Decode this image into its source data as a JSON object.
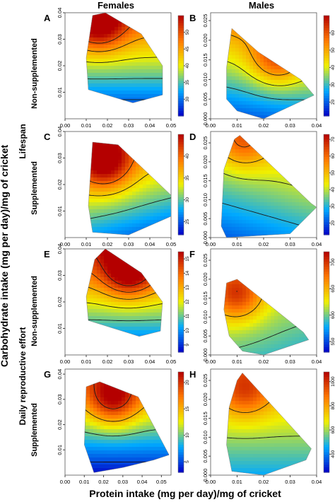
{
  "figure": {
    "column_titles": [
      "Females",
      "Males"
    ],
    "row_groups": [
      "Lifespan",
      "Daily reproductive effort"
    ],
    "row_labels": [
      "Non-supplemented",
      "Supplemented",
      "Non-supplemented",
      "Supplemented"
    ],
    "xlabel": "Protein intake (mg per day)/mg of cricket",
    "ylabel": "Carbohydrate intake (mg per day)/mg of cricket"
  },
  "colors": {
    "low": "#0000c8",
    "mid": "#f0f000",
    "high": "#b40000",
    "contour": "#1a1a1a"
  },
  "chart_data": [
    {
      "panel": "A",
      "type": "heatmap",
      "sex": "Females",
      "diet": "Non-supplemented",
      "response": "Lifespan",
      "xlim": [
        0,
        0.05
      ],
      "ylim": [
        0,
        0.04
      ],
      "xticks": [
        "0.00",
        "0.01",
        "0.02",
        "0.03",
        "0.04",
        "0.05"
      ],
      "yticks": [
        "0.01",
        "0.02",
        "0.03",
        "0.04"
      ],
      "colorbar": {
        "min": 25,
        "max": 55,
        "ticks": [
          "30",
          "35",
          "40",
          "45",
          "50"
        ]
      },
      "region": [
        [
          0.013,
          0.039
        ],
        [
          0.019,
          0.04
        ],
        [
          0.036,
          0.032
        ],
        [
          0.046,
          0.02
        ],
        [
          0.046,
          0.009
        ],
        [
          0.032,
          0.006
        ],
        [
          0.011,
          0.011
        ],
        [
          0.01,
          0.023
        ]
      ],
      "surface": {
        "base": 38,
        "gx": 0.0,
        "gy": 25.0,
        "peak": [
          0.016,
          0.036
        ],
        "peak_height": 12
      }
    },
    {
      "panel": "B",
      "type": "heatmap",
      "sex": "Males",
      "diet": "Non-supplemented",
      "response": "Lifespan",
      "xlim": [
        0,
        0.04
      ],
      "ylim": [
        0,
        0.027
      ],
      "xticks": [
        "0.00",
        "0.01",
        "0.02",
        "0.03",
        "0.04"
      ],
      "yticks": [
        "0.000",
        "0.005",
        "0.010",
        "0.015",
        "0.020",
        "0.025"
      ],
      "colorbar": {
        "min": 12,
        "max": 70,
        "ticks": [
          "20",
          "30",
          "40",
          "50",
          "60"
        ]
      },
      "region": [
        [
          0.008,
          0.023
        ],
        [
          0.018,
          0.017
        ],
        [
          0.034,
          0.01
        ],
        [
          0.039,
          0.006
        ],
        [
          0.02,
          0.0
        ],
        [
          0.01,
          0.002
        ],
        [
          0.006,
          0.005
        ],
        [
          0.006,
          0.013
        ]
      ],
      "surface": {
        "base": 40,
        "gx": 6.0,
        "gy": 40.0,
        "peak": [
          0.025,
          0.015
        ],
        "peak_height": 18
      }
    },
    {
      "panel": "C",
      "type": "heatmap",
      "sex": "Females",
      "diet": "Supplemented",
      "response": "Lifespan",
      "xlim": [
        0,
        0.05
      ],
      "ylim": [
        0,
        0.04
      ],
      "xticks": [
        "0.00",
        "0.01",
        "0.02",
        "0.03",
        "0.04",
        "0.05"
      ],
      "yticks": [
        "0.01",
        "0.02",
        "0.03",
        "0.04"
      ],
      "colorbar": {
        "min": 22,
        "max": 45,
        "ticks": [
          "25",
          "30",
          "35",
          "40"
        ]
      },
      "region": [
        [
          0.013,
          0.036
        ],
        [
          0.025,
          0.035
        ],
        [
          0.05,
          0.016
        ],
        [
          0.05,
          0.008
        ],
        [
          0.03,
          0.001
        ],
        [
          0.013,
          0.002
        ],
        [
          0.011,
          0.012
        ]
      ],
      "surface": {
        "base": 34,
        "gx": -4.0,
        "gy": 16.0,
        "peak": [
          0.019,
          0.028
        ],
        "peak_height": 10
      }
    },
    {
      "panel": "D",
      "type": "heatmap",
      "sex": "Males",
      "diet": "Supplemented",
      "response": "Lifespan",
      "xlim": [
        0,
        0.04
      ],
      "ylim": [
        0,
        0.028
      ],
      "xticks": [
        "0.00",
        "0.01",
        "0.02",
        "0.03",
        "0.04"
      ],
      "yticks": [
        "0.000",
        "0.005",
        "0.010",
        "0.015",
        "0.020",
        "0.025"
      ],
      "colorbar": {
        "min": 13,
        "max": 73,
        "ticks": [
          "20",
          "30",
          "40",
          "50",
          "60",
          "70"
        ]
      },
      "region": [
        [
          0.009,
          0.026
        ],
        [
          0.011,
          0.027
        ],
        [
          0.038,
          0.009
        ],
        [
          0.04,
          0.008
        ],
        [
          0.03,
          0.001
        ],
        [
          0.006,
          0.0
        ],
        [
          0.004,
          0.003
        ],
        [
          0.005,
          0.018
        ]
      ],
      "surface": {
        "base": 38,
        "gx": 8.0,
        "gy": 28.0,
        "peak": [
          0.012,
          0.025
        ],
        "peak_height": 14
      }
    },
    {
      "panel": "E",
      "type": "heatmap",
      "sex": "Females",
      "diet": "Non-supplemented",
      "response": "Daily reproductive effort",
      "xlim": [
        0,
        0.05
      ],
      "ylim": [
        0,
        0.04
      ],
      "xticks": [
        "0.00",
        "0.01",
        "0.02",
        "0.03",
        "0.04",
        "0.05"
      ],
      "yticks": [
        "0.01",
        "0.02",
        "0.03",
        "0.04"
      ],
      "colorbar": {
        "min": 8.5,
        "max": 15.5,
        "ticks": [
          "9",
          "10",
          "11",
          "12",
          "13",
          "14",
          "15"
        ]
      },
      "region": [
        [
          0.014,
          0.036
        ],
        [
          0.019,
          0.04
        ],
        [
          0.036,
          0.031
        ],
        [
          0.046,
          0.02
        ],
        [
          0.045,
          0.009
        ],
        [
          0.035,
          0.007
        ],
        [
          0.011,
          0.013
        ],
        [
          0.01,
          0.022
        ]
      ],
      "surface": {
        "base": 12,
        "gx": 0.0,
        "gy": 6.0,
        "peak": [
          0.03,
          0.032
        ],
        "peak_height": 3
      }
    },
    {
      "panel": "F",
      "type": "heatmap",
      "sex": "Males",
      "diet": "Non-supplemented",
      "response": "Daily reproductive effort",
      "xlim": [
        0,
        0.04
      ],
      "ylim": [
        0,
        0.028
      ],
      "xticks": [
        "0.00",
        "0.01",
        "0.02",
        "0.03",
        "0.04"
      ],
      "yticks": [
        "0.000",
        "0.005",
        "0.010",
        "0.015",
        "0.020",
        "0.025"
      ],
      "colorbar": {
        "min": 530,
        "max": 720,
        "ticks": [
          "550",
          "600",
          "650",
          "700"
        ]
      },
      "region": [
        [
          0.006,
          0.019
        ],
        [
          0.01,
          0.02
        ],
        [
          0.035,
          0.006
        ],
        [
          0.037,
          0.004
        ],
        [
          0.02,
          0.0
        ],
        [
          0.012,
          0.001
        ],
        [
          0.007,
          0.005
        ],
        [
          0.005,
          0.012
        ]
      ],
      "surface": {
        "base": 620,
        "gx": -20.0,
        "gy": 60.0,
        "peak": [
          0.01,
          0.016
        ],
        "peak_height": 70
      }
    },
    {
      "panel": "G",
      "type": "heatmap",
      "sex": "Females",
      "diet": "Supplemented",
      "response": "Daily reproductive effort",
      "xlim": [
        0,
        0.055
      ],
      "ylim": [
        0,
        0.042
      ],
      "xticks": [
        "0.00",
        "0.01",
        "0.02",
        "0.03",
        "0.04",
        "0.05"
      ],
      "yticks": [
        "0.01",
        "0.02",
        "0.03",
        "0.04"
      ],
      "colorbar": {
        "min": 3,
        "max": 22,
        "ticks": [
          "5",
          "10",
          "15",
          "20"
        ]
      },
      "region": [
        [
          0.011,
          0.035
        ],
        [
          0.018,
          0.037
        ],
        [
          0.038,
          0.031
        ],
        [
          0.054,
          0.008
        ],
        [
          0.046,
          0.006
        ],
        [
          0.03,
          0.003
        ],
        [
          0.015,
          0.001
        ],
        [
          0.01,
          0.012
        ]
      ],
      "surface": {
        "base": 11,
        "gx": 0.0,
        "gy": 16.0,
        "peak": [
          0.025,
          0.03
        ],
        "peak_height": 8
      }
    },
    {
      "panel": "H",
      "type": "heatmap",
      "sex": "Males",
      "diet": "Supplemented",
      "response": "Daily reproductive effort",
      "xlim": [
        0,
        0.04
      ],
      "ylim": [
        0,
        0.028
      ],
      "xticks": [
        "0.00",
        "0.01",
        "0.02",
        "0.03",
        "0.04"
      ],
      "yticks": [
        "0.000",
        "0.005",
        "0.010",
        "0.015",
        "0.020",
        "0.025"
      ],
      "colorbar": {
        "min": 250,
        "max": 1080,
        "ticks": [
          "400",
          "600",
          "800",
          "1000"
        ]
      },
      "region": [
        [
          0.01,
          0.025
        ],
        [
          0.012,
          0.027
        ],
        [
          0.038,
          0.007
        ],
        [
          0.036,
          0.004
        ],
        [
          0.02,
          0.0
        ],
        [
          0.008,
          0.001
        ],
        [
          0.006,
          0.008
        ],
        [
          0.007,
          0.018
        ]
      ],
      "surface": {
        "base": 650,
        "gx": 0.0,
        "gy": 380.0,
        "peak": [
          0.013,
          0.022
        ],
        "peak_height": 220
      }
    }
  ]
}
